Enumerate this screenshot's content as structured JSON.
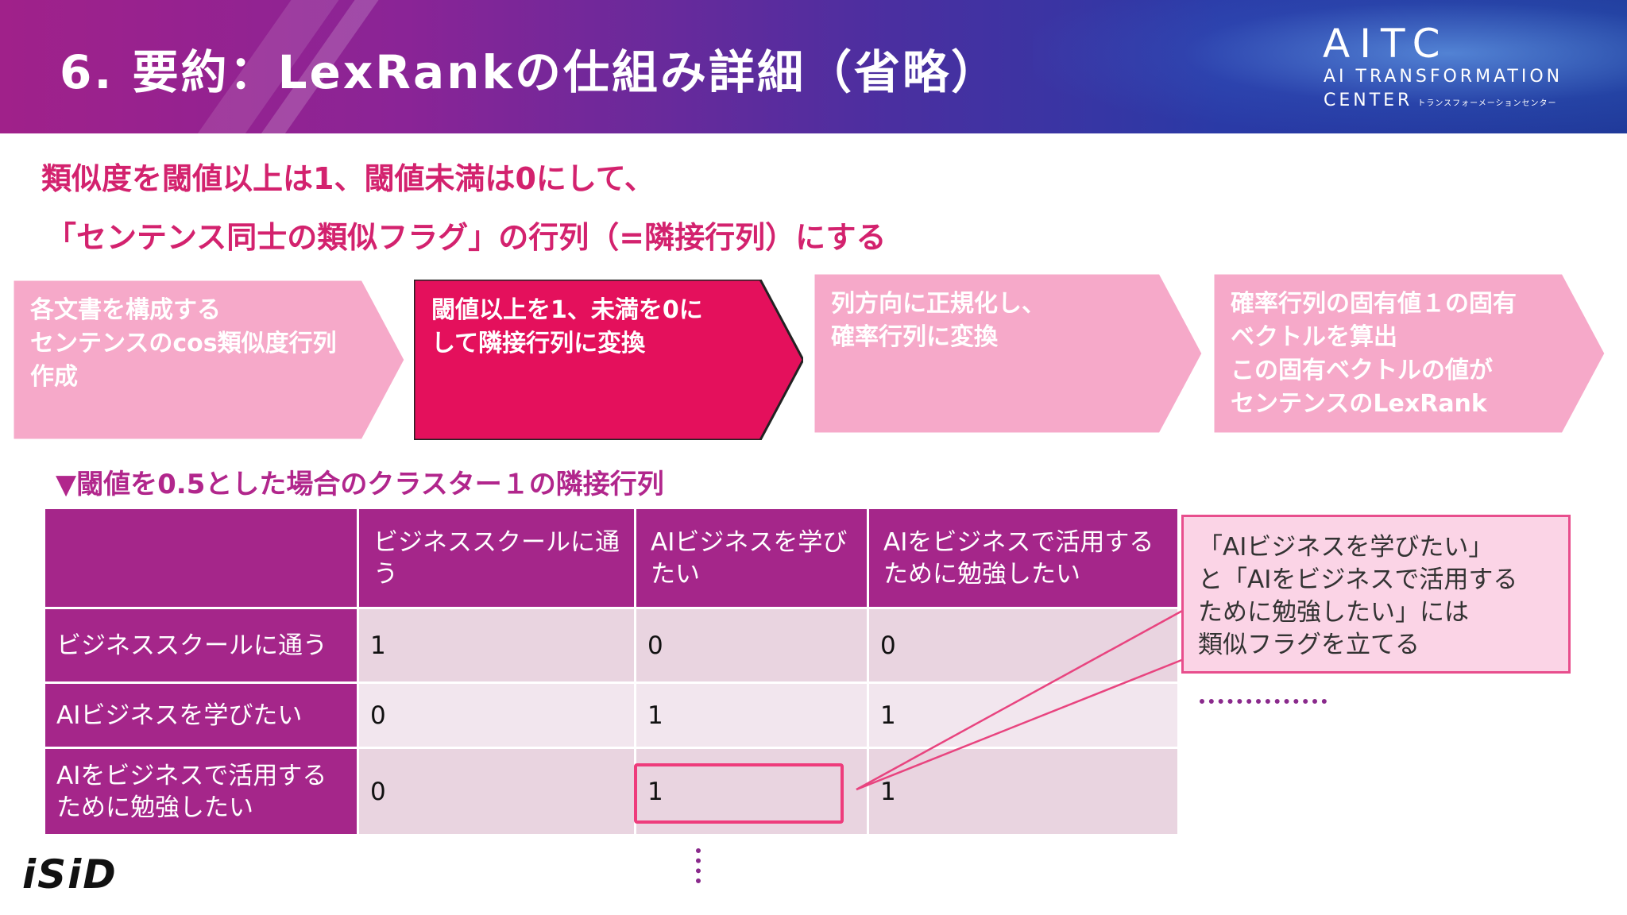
{
  "header": {
    "title": "6. 要約：LexRankの仕組み詳細（省略）",
    "logo_main": "AITC",
    "logo_line1": "AI TRANSFORMATION",
    "logo_line2": "CENTER",
    "logo_small": "トランスフォーメーションセンター"
  },
  "lead": {
    "line1": "類似度を閾値以上は1、閾値未満は0にして、",
    "line2": "「センテンス同士の類似フラグ」の行列（=隣接行列）にする"
  },
  "steps": [
    {
      "text": "各文書を構成する\nセンテンスのcos類似度行列\n作成",
      "color": "#f6a9c9",
      "active": false
    },
    {
      "text": "閾値以上を1、未満を0に\nして隣接行列に変換",
      "color": "#e4105c",
      "active": true
    },
    {
      "text": "列方向に正規化し、\n確率行列に変換",
      "color": "#f6a9c9",
      "active": false
    },
    {
      "text": "確率行列の固有値１の固有\nベクトルを算出\nこの固有ベクトルの値が\nセンテンスのLexRank",
      "color": "#f6a9c9",
      "active": false
    }
  ],
  "caption": "▼閾値を0.5とした場合のクラスター１の隣接行列",
  "matrix": {
    "columns": [
      "",
      "ビジネススクールに通う",
      "AIビジネスを学びたい",
      "AIをビジネスで活用するために勉強したい"
    ],
    "rows": [
      {
        "label": "ビジネススクールに通う",
        "values": [
          "1",
          "0",
          "0"
        ]
      },
      {
        "label": "AIビジネスを学びたい",
        "values": [
          "0",
          "1",
          "1"
        ]
      },
      {
        "label": "AIをビジネスで活用するために勉強したい",
        "values": [
          "0",
          "1",
          "1"
        ]
      }
    ]
  },
  "callout": "「AIビジネスを学びたい」\nと「AIをビジネスで活用する\nために勉強したい」には\n類似フラグを立てる",
  "footer_logo": "iSiD",
  "colors": {
    "accent_pink": "#d3226e",
    "matrix_purple": "#a5268a",
    "step_active": "#e4105c",
    "step_inactive": "#f6a9c9"
  }
}
